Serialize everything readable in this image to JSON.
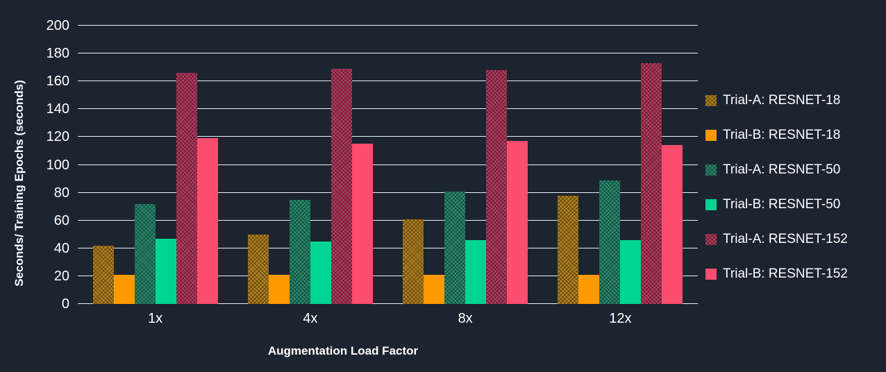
{
  "chart_data": {
    "type": "bar",
    "title": "",
    "xlabel": "Augmentation Load Factor",
    "ylabel": "Seconds/ Training Epochs (seconds)",
    "categories": [
      "1x",
      "4x",
      "8x",
      "12x"
    ],
    "series": [
      {
        "name": "Trial-A: RESNET-18",
        "color": "#b0801f",
        "hatch": true,
        "values": [
          42,
          50,
          61,
          78
        ]
      },
      {
        "name": "Trial-B: RESNET-18",
        "color": "#ff9900",
        "hatch": false,
        "values": [
          21,
          21,
          21,
          21
        ]
      },
      {
        "name": "Trial-A: RESNET-50",
        "color": "#27866b",
        "hatch": true,
        "values": [
          72,
          75,
          81,
          89
        ]
      },
      {
        "name": "Trial-B: RESNET-50",
        "color": "#00d492",
        "hatch": false,
        "values": [
          47,
          45,
          46,
          46
        ]
      },
      {
        "name": "Trial-A: RESNET-152",
        "color": "#b13a5d",
        "hatch": true,
        "values": [
          166,
          169,
          168,
          173
        ]
      },
      {
        "name": "Trial-B: RESNET-152",
        "color": "#fb4d6e",
        "hatch": false,
        "values": [
          119,
          115,
          117,
          114
        ]
      }
    ],
    "yticks": [
      0,
      20,
      40,
      60,
      80,
      100,
      120,
      140,
      160,
      180,
      200
    ],
    "ylim": [
      0,
      200
    ],
    "ytick_step": 20,
    "grid": true,
    "legend_position": "right"
  },
  "colors": {
    "background": "#1c2430",
    "grid": "#eef1f6",
    "text": "#ffffff"
  }
}
